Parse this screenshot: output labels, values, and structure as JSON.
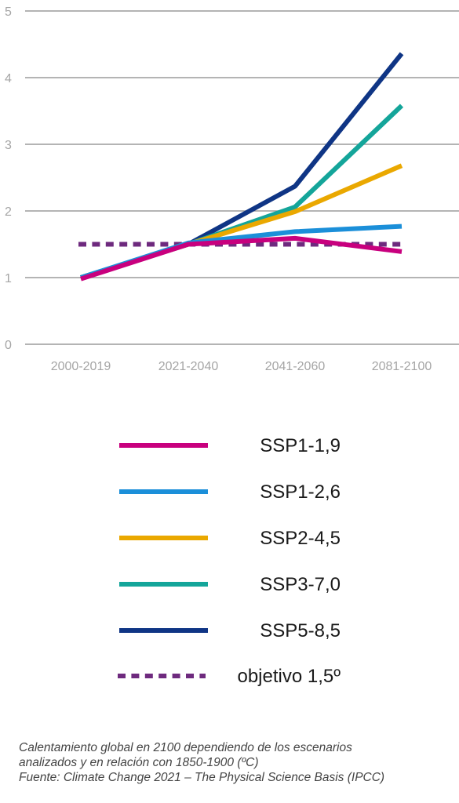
{
  "chart_data": {
    "type": "line",
    "categories": [
      "2000-2019",
      "2021-2040",
      "2041-2060",
      "2081-2100"
    ],
    "ylim": [
      0,
      5
    ],
    "yticks": [
      "0",
      "1",
      "2",
      "3",
      "4",
      "5"
    ],
    "grid": true,
    "legend_placement": "bottom",
    "series": [
      {
        "name": "SSP1-1,9",
        "color": "#c8007e",
        "style": "solid",
        "values": [
          0.98,
          1.5,
          1.59,
          1.39
        ]
      },
      {
        "name": "SSP1-2,6",
        "color": "#1b8fd9",
        "style": "solid",
        "values": [
          1.0,
          1.52,
          1.69,
          1.77
        ]
      },
      {
        "name": "SSP2-4,5",
        "color": "#eaa800",
        "style": "solid",
        "values": [
          1.0,
          1.5,
          1.99,
          2.68
        ]
      },
      {
        "name": "SSP3-7,0",
        "color": "#14a59a",
        "style": "solid",
        "values": [
          1.0,
          1.5,
          2.06,
          3.58
        ]
      },
      {
        "name": "SSP5-8,5",
        "color": "#0f3585",
        "style": "solid",
        "values": [
          1.0,
          1.5,
          2.37,
          4.36
        ]
      },
      {
        "name": "objetivo 1,5º",
        "color": "#6e2a7e",
        "style": "dashed",
        "values": [
          1.5,
          1.5,
          1.5,
          1.5
        ]
      }
    ]
  },
  "caption": {
    "line1": "Calentamiento global en 2100 dependiendo de los escenarios",
    "line2": "analizados y en relación con 1850-1900 (ºC)",
    "line3": "Fuente: Climate Change 2021 – The Physical Science Basis (IPCC)"
  }
}
